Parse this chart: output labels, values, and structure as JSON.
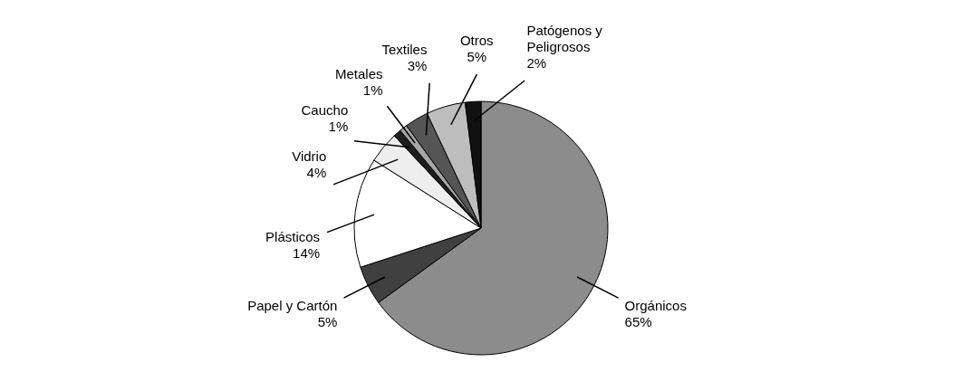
{
  "chart_data": {
    "type": "pie",
    "categories": [
      "Orgánicos",
      "Papel y Cartón",
      "Plásticos",
      "Vidrio",
      "Caucho",
      "Metales",
      "Textiles",
      "Otros",
      "Patógenos y Peligrosos"
    ],
    "values": [
      65,
      5,
      14,
      4,
      1,
      1,
      3,
      5,
      2
    ],
    "value_labels": [
      "65%",
      "5%",
      "14%",
      "4%",
      "1%",
      "1%",
      "3%",
      "5%",
      "2%"
    ],
    "colors": [
      "#8c8c8c",
      "#404040",
      "#ffffff",
      "#eeeeee",
      "#1e1e1e",
      "#a6a6a6",
      "#555555",
      "#bdbdbd",
      "#111111"
    ]
  }
}
